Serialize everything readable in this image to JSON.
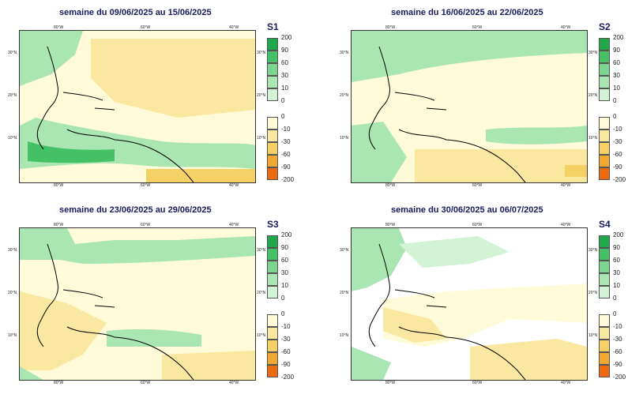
{
  "panels": [
    {
      "title": "semaine du 09/06/2025 au 15/06/2025",
      "label": "S1"
    },
    {
      "title": "semaine du 16/06/2025 au 22/06/2025",
      "label": "S2"
    },
    {
      "title": "semaine du 23/06/2025 au 29/06/2025",
      "label": "S3"
    },
    {
      "title": "semaine du 30/06/2025 au 06/07/2025",
      "label": "S4"
    }
  ],
  "map_ticks": {
    "lon": [
      "80°W",
      "60°W",
      "40°W"
    ],
    "lat": [
      "30°N",
      "20°N",
      "10°N"
    ]
  },
  "colorbar": {
    "positive_labels": [
      "200",
      "90",
      "60",
      "30",
      "10",
      "0"
    ],
    "negative_labels": [
      "0",
      "-10",
      "-30",
      "-60",
      "-90",
      "-200"
    ],
    "positive_colors": [
      "#1ea84a",
      "#44c165",
      "#7dd68f",
      "#a9e6b1",
      "#d3f3d7"
    ],
    "negative_colors": [
      "#fffbd9",
      "#fbe8a0",
      "#f5d065",
      "#f0a830",
      "#ee6a10"
    ]
  },
  "colors": {
    "title": "#1a1a5e",
    "coast": "#000000",
    "green": "#a9e6b1",
    "yellow": "#fbe8a0"
  }
}
